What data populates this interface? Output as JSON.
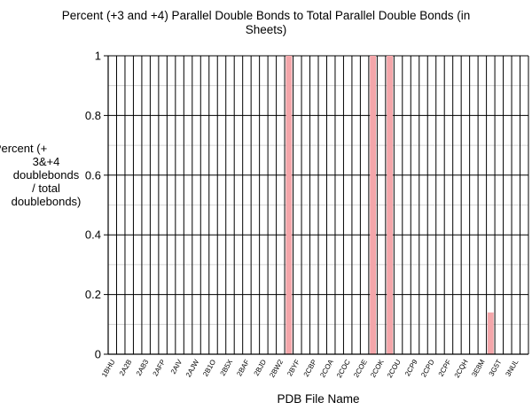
{
  "chart_data": {
    "type": "bar",
    "title": "Percent (+3 and +4) Parallel Double Bonds to Total Parallel Double Bonds (in Sheets)",
    "ylabel_lines": [
      "Percent (+",
      "3&+4",
      "doublebonds",
      "/ total",
      "doublebonds)"
    ],
    "xlabel": "PDB File Name",
    "ylim": [
      0,
      1
    ],
    "yticks": [
      "0",
      "0.2",
      "0.4",
      "0.6",
      "0.8",
      "1"
    ],
    "categories": [
      "1BHU",
      "",
      "2A2B",
      "",
      "2AB3",
      "",
      "2AFP",
      "",
      "2AIV",
      "",
      "2AJW",
      "",
      "2B1O",
      "",
      "2B5X",
      "",
      "2BAF",
      "",
      "2BJD",
      "",
      "2BW2",
      "",
      "2BYF",
      "",
      "2CBP",
      "",
      "2COA",
      "",
      "2COC",
      "",
      "2COE",
      "",
      "2COK",
      "",
      "2COU",
      "",
      "2CP9",
      "",
      "2CPD",
      "",
      "2CPF",
      "",
      "2CQH",
      "",
      "3E8M",
      "",
      "3G5T",
      "",
      "3NUL",
      ""
    ],
    "values": [
      0,
      0,
      0,
      0,
      0,
      0,
      0,
      0,
      0,
      0,
      0,
      0,
      0,
      0,
      0,
      0,
      0,
      0,
      0,
      0,
      0,
      1,
      0,
      0,
      0,
      0,
      0,
      0,
      0,
      0,
      0,
      1,
      0,
      1,
      0,
      0,
      0,
      0,
      0,
      0,
      0,
      0,
      0,
      0,
      0,
      0.14,
      0,
      0,
      0,
      0
    ],
    "bar_color": "#f4a6aa",
    "grid": true
  }
}
